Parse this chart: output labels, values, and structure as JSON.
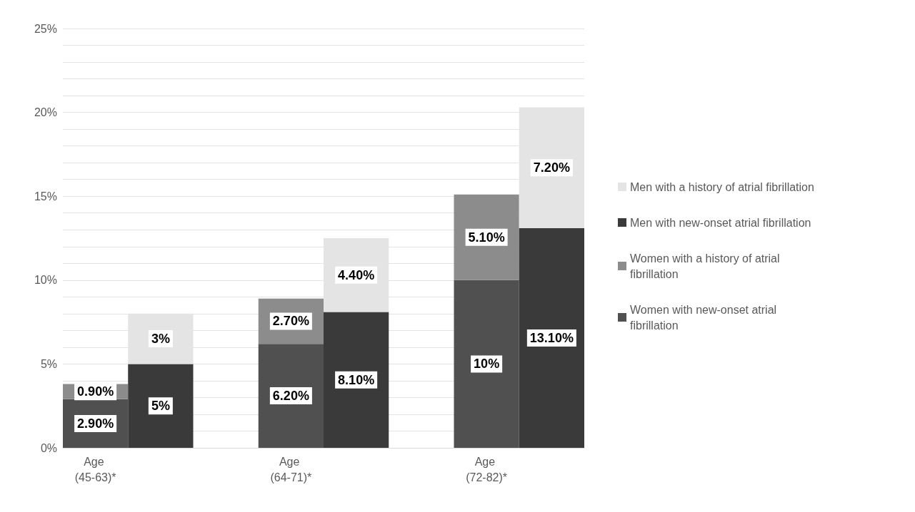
{
  "chart_data": {
    "type": "bar",
    "stacked": true,
    "categories": [
      "Age (45-63)*",
      null,
      null,
      "Age (64-71)*",
      null,
      null,
      "Age (72-82)*",
      null
    ],
    "series": [
      {
        "name": "Women with new-onset atrial fibrillation",
        "color": "#505050",
        "values": [
          2.9,
          null,
          null,
          6.2,
          null,
          null,
          10,
          null
        ],
        "value_labels": [
          "2.90%",
          null,
          null,
          "6.20%",
          null,
          null,
          "10%",
          null
        ]
      },
      {
        "name": "Women with a history of atrial fibrillation",
        "color": "#8c8c8c",
        "values": [
          0.9,
          null,
          null,
          2.7,
          null,
          null,
          5.1,
          null
        ],
        "value_labels": [
          "0.90%",
          null,
          null,
          "2.70%",
          null,
          null,
          "5.10%",
          null
        ]
      },
      {
        "name": "Men with new-onset atrial fibrillation",
        "color": "#3a3a3a",
        "values": [
          null,
          5,
          null,
          null,
          8.1,
          null,
          null,
          13.1
        ],
        "value_labels": [
          null,
          "5%",
          null,
          null,
          "8.10%",
          null,
          null,
          "13.10%"
        ]
      },
      {
        "name": "Men with a history of atrial fibrillation",
        "color": "#e4e4e4",
        "values": [
          null,
          3,
          null,
          null,
          4.4,
          null,
          null,
          7.2
        ],
        "value_labels": [
          null,
          "3%",
          null,
          null,
          "4.40%",
          null,
          null,
          "7.20%"
        ]
      }
    ],
    "ylim": [
      0,
      25
    ],
    "yticks": [
      {
        "value": 0,
        "label": "0%"
      },
      {
        "value": 1,
        "label": null
      },
      {
        "value": 2,
        "label": null
      },
      {
        "value": 3,
        "label": null
      },
      {
        "value": 4,
        "label": null
      },
      {
        "value": 5,
        "label": "5%"
      },
      {
        "value": 6,
        "label": null
      },
      {
        "value": 7,
        "label": null
      },
      {
        "value": 8,
        "label": null
      },
      {
        "value": 9,
        "label": null
      },
      {
        "value": 10,
        "label": "10%"
      },
      {
        "value": 11,
        "label": null
      },
      {
        "value": 12,
        "label": null
      },
      {
        "value": 13,
        "label": null
      },
      {
        "value": 14,
        "label": null
      },
      {
        "value": 15,
        "label": "15%"
      },
      {
        "value": 16,
        "label": null
      },
      {
        "value": 17,
        "label": null
      },
      {
        "value": 18,
        "label": null
      },
      {
        "value": 19,
        "label": null
      },
      {
        "value": 20,
        "label": "20%"
      },
      {
        "value": 21,
        "label": null
      },
      {
        "value": 22,
        "label": null
      },
      {
        "value": 23,
        "label": null
      },
      {
        "value": 24,
        "label": null
      },
      {
        "value": 25,
        "label": "25%"
      }
    ],
    "grid": "y",
    "legend": "right"
  }
}
